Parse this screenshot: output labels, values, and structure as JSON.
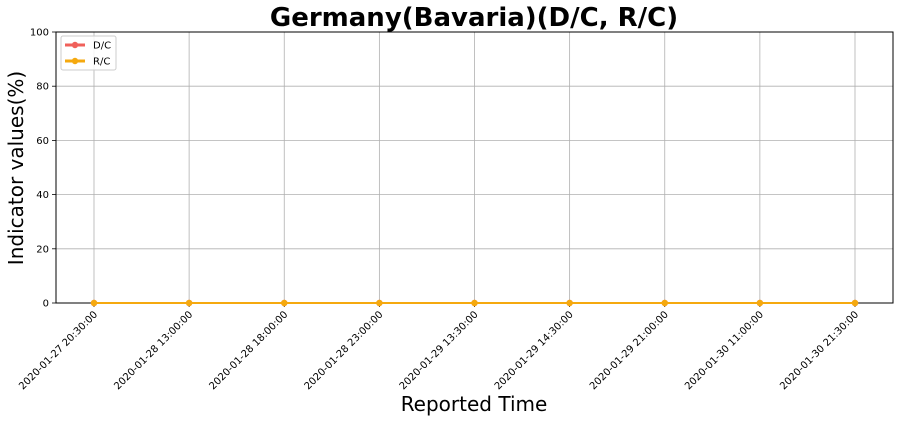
{
  "chart_data": {
    "type": "line",
    "title": "Germany(Bavaria)(D/C, R/C)",
    "xlabel": "Reported Time",
    "ylabel": "Indicator values(%)",
    "ylim": [
      0,
      100
    ],
    "yticks": [
      "0",
      "20",
      "40",
      "60",
      "80",
      "100"
    ],
    "categories": [
      "2020-01-27 20:30:00",
      "2020-01-28 13:00:00",
      "2020-01-28 18:00:00",
      "2020-01-28 23:00:00",
      "2020-01-29 13:30:00",
      "2020-01-29 14:30:00",
      "2020-01-29 21:00:00",
      "2020-01-30 11:00:00",
      "2020-01-30 21:30:00"
    ],
    "series": [
      {
        "name": "D/C",
        "color": "#f0605a",
        "values": [
          0,
          0,
          0,
          0,
          0,
          0,
          0,
          0,
          0
        ]
      },
      {
        "name": "R/C",
        "color": "#f5a90f",
        "values": [
          0,
          0,
          0,
          0,
          0,
          0,
          0,
          0,
          0
        ]
      }
    ],
    "grid": true,
    "legend": "top-left"
  }
}
